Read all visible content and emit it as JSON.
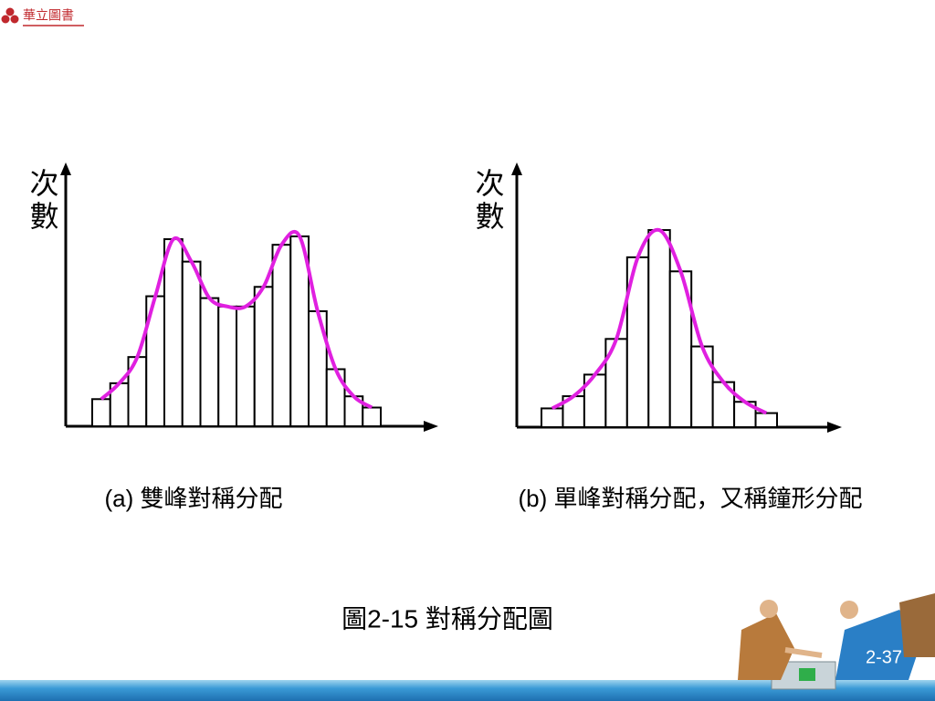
{
  "logo": "華立圖書",
  "chart_data": [
    {
      "type": "bar",
      "y_label": "次數",
      "caption": "(a) 雙峰對稱分配",
      "values": [
        29,
        46,
        74,
        139,
        200,
        176,
        137,
        128,
        128,
        149,
        194,
        203,
        123,
        61,
        32,
        20
      ],
      "ylim": [
        0,
        282
      ],
      "color": "#ffffff",
      "curve_color": "#e020e0"
    },
    {
      "type": "bar",
      "y_label": "次數",
      "caption": "(b) 單峰對稱分配，又稱鐘形分配",
      "values": [
        20,
        33,
        56,
        94,
        181,
        210,
        166,
        86,
        48,
        27,
        15
      ],
      "ylim": [
        0,
        282
      ],
      "color": "#ffffff",
      "curve_color": "#e020e0"
    }
  ],
  "figure_title": "圖2-15  對稱分配圖",
  "page_number": "2-37"
}
